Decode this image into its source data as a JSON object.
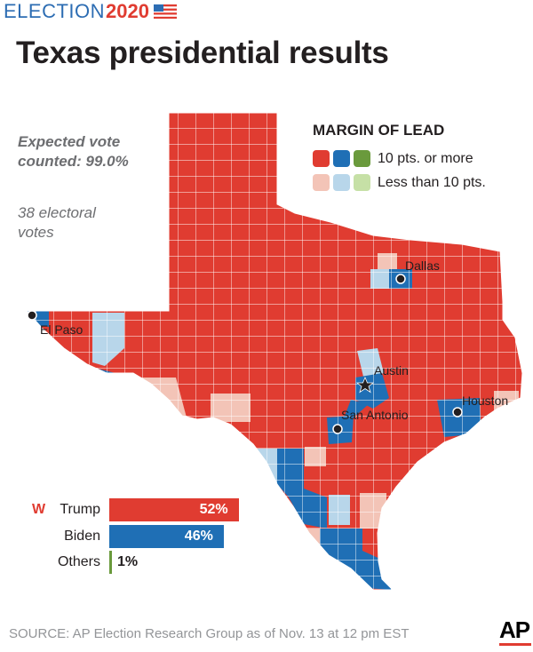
{
  "brand": {
    "election": "ELECTION",
    "year": "2020",
    "flag_icon": "us-flag-icon"
  },
  "title": "Texas presidential results",
  "expected_vote": {
    "line1": "Expected vote",
    "line2": "counted: 99.0%"
  },
  "electoral": {
    "line1": "38 electoral",
    "line2": "votes"
  },
  "legend": {
    "title": "MARGIN OF LEAD",
    "row1_label": "10 pts. or more",
    "row2_label": "Less than 10 pts.",
    "colors": {
      "rep_strong": "#e03c31",
      "dem_strong": "#1f6fb5",
      "oth_strong": "#6a9a3c",
      "rep_lean": "#f3c4b7",
      "dem_lean": "#b8d6ea",
      "oth_lean": "#c6e0a6"
    }
  },
  "cities": [
    {
      "name": "Dallas",
      "marker": "dot"
    },
    {
      "name": "El Paso",
      "marker": "dot"
    },
    {
      "name": "Austin",
      "marker": "star"
    },
    {
      "name": "San Antonio",
      "marker": "dot"
    },
    {
      "name": "Houston",
      "marker": "dot"
    }
  ],
  "results": [
    {
      "winner_mark": "W",
      "name": "Trump",
      "pct": "52%",
      "value": 52,
      "color": "#e03c31"
    },
    {
      "winner_mark": "",
      "name": "Biden",
      "pct": "46%",
      "value": 46,
      "color": "#1f6fb5"
    },
    {
      "winner_mark": "",
      "name": "Others",
      "pct": "1%",
      "value": 1,
      "color": "#6a9a3c"
    }
  ],
  "source": "SOURCE: AP Election Research Group as of Nov. 13 at 12 pm EST",
  "logo": "AP"
}
